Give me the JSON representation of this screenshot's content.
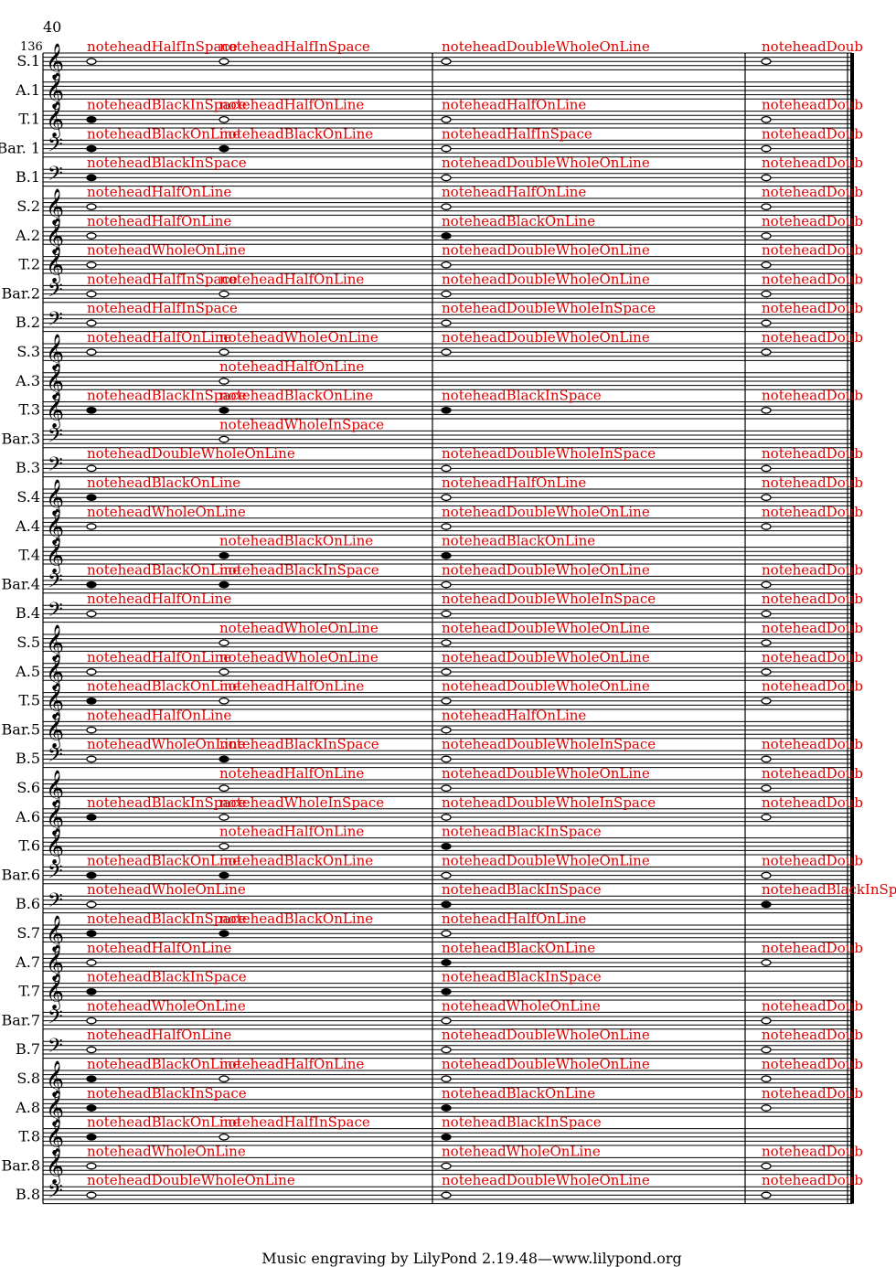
{
  "page": {
    "page_number": "40",
    "measure_number": "136",
    "footer": "Music engraving by LilyPond 2.19.48—www.lilypond.org"
  },
  "annotation_labels": {
    "whole_on_line": "noteheadWholeOnLine",
    "whole_in_space": "noteheadWholeInSpace",
    "double_whole_on_line": "noteheadDoubleWholeOnLine",
    "double_whole_in_space": "noteheadDoubleWholeInSpace",
    "half_on_line": "noteheadHalfOnLine",
    "half_in_space": "noteheadHalfInSpace",
    "black_on_line": "noteheadBlackOnLine",
    "black_in_space": "noteheadBlackInSpace",
    "truncated": "noteheadDoub"
  },
  "staves": [
    {
      "label": "S.1",
      "clef": "treble"
    },
    {
      "label": "A.1",
      "clef": "treble"
    },
    {
      "label": "T.1",
      "clef": "treble"
    },
    {
      "label": "Bar. 1",
      "clef": "bass"
    },
    {
      "label": "B.1",
      "clef": "bass"
    },
    {
      "label": "S.2",
      "clef": "treble"
    },
    {
      "label": "A.2",
      "clef": "treble"
    },
    {
      "label": "T.2",
      "clef": "treble"
    },
    {
      "label": "Bar.2",
      "clef": "bass"
    },
    {
      "label": "B.2",
      "clef": "bass"
    },
    {
      "label": "S.3",
      "clef": "treble"
    },
    {
      "label": "A.3",
      "clef": "treble"
    },
    {
      "label": "T.3",
      "clef": "treble"
    },
    {
      "label": "Bar.3",
      "clef": "bass"
    },
    {
      "label": "B.3",
      "clef": "bass"
    },
    {
      "label": "S.4",
      "clef": "treble"
    },
    {
      "label": "A.4",
      "clef": "treble"
    },
    {
      "label": "T.4",
      "clef": "treble"
    },
    {
      "label": "Bar.4",
      "clef": "bass"
    },
    {
      "label": "B.4",
      "clef": "bass"
    },
    {
      "label": "S.5",
      "clef": "treble"
    },
    {
      "label": "A.5",
      "clef": "treble"
    },
    {
      "label": "T.5",
      "clef": "treble"
    },
    {
      "label": "Bar.5",
      "clef": "treble"
    },
    {
      "label": "B.5",
      "clef": "bass"
    },
    {
      "label": "S.6",
      "clef": "treble"
    },
    {
      "label": "A.6",
      "clef": "treble"
    },
    {
      "label": "T.6",
      "clef": "treble"
    },
    {
      "label": "Bar.6",
      "clef": "bass"
    },
    {
      "label": "B.6",
      "clef": "bass"
    },
    {
      "label": "S.7",
      "clef": "treble"
    },
    {
      "label": "A.7",
      "clef": "treble"
    },
    {
      "label": "T.7",
      "clef": "treble"
    },
    {
      "label": "Bar.7",
      "clef": "bass"
    },
    {
      "label": "B.7",
      "clef": "bass"
    },
    {
      "label": "S.8",
      "clef": "treble"
    },
    {
      "label": "A.8",
      "clef": "treble"
    },
    {
      "label": "T.8",
      "clef": "treble"
    },
    {
      "label": "Bar.8",
      "clef": "treble"
    },
    {
      "label": "B.8",
      "clef": "bass"
    }
  ],
  "annotations": [
    {
      "staff": 0,
      "m": 0,
      "text": "noteheadHalfInSpace"
    },
    {
      "staff": 0,
      "m": 1,
      "text": "noteheadHalfInSpace"
    },
    {
      "staff": 0,
      "m": 2,
      "text": "noteheadDoubleWholeOnLine"
    },
    {
      "staff": 0,
      "m": 3,
      "text": "noteheadDoub"
    },
    {
      "staff": 2,
      "m": 0,
      "text": "noteheadBlackInSpace"
    },
    {
      "staff": 2,
      "m": 1,
      "text": "noteheadHalfOnLine"
    },
    {
      "staff": 2,
      "m": 2,
      "text": "noteheadHalfOnLine"
    },
    {
      "staff": 2,
      "m": 3,
      "text": "noteheadDoub"
    },
    {
      "staff": 3,
      "m": 0,
      "text": "noteheadBlackOnLine"
    },
    {
      "staff": 3,
      "m": 1,
      "text": "noteheadBlackOnLine"
    },
    {
      "staff": 3,
      "m": 2,
      "text": "noteheadHalfInSpace"
    },
    {
      "staff": 3,
      "m": 3,
      "text": "noteheadDoub"
    },
    {
      "staff": 4,
      "m": 0,
      "text": "noteheadBlackInSpace"
    },
    {
      "staff": 4,
      "m": 2,
      "text": "noteheadDoubleWholeOnLine"
    },
    {
      "staff": 4,
      "m": 3,
      "text": "noteheadDoub"
    },
    {
      "staff": 5,
      "m": 0,
      "text": "noteheadHalfOnLine"
    },
    {
      "staff": 5,
      "m": 2,
      "text": "noteheadHalfOnLine"
    },
    {
      "staff": 5,
      "m": 3,
      "text": "noteheadDoub"
    },
    {
      "staff": 6,
      "m": 0,
      "text": "noteheadHalfOnLine"
    },
    {
      "staff": 6,
      "m": 2,
      "text": "noteheadBlackOnLine"
    },
    {
      "staff": 6,
      "m": 3,
      "text": "noteheadDoub"
    },
    {
      "staff": 7,
      "m": 0,
      "text": "noteheadWholeOnLine"
    },
    {
      "staff": 7,
      "m": 2,
      "text": "noteheadDoubleWholeOnLine"
    },
    {
      "staff": 7,
      "m": 3,
      "text": "noteheadDoub"
    },
    {
      "staff": 8,
      "m": 0,
      "text": "noteheadHalfInSpace"
    },
    {
      "staff": 8,
      "m": 1,
      "text": "noteheadHalfOnLine"
    },
    {
      "staff": 8,
      "m": 2,
      "text": "noteheadDoubleWholeOnLine"
    },
    {
      "staff": 8,
      "m": 3,
      "text": "noteheadDoub"
    },
    {
      "staff": 9,
      "m": 0,
      "text": "noteheadHalfInSpace"
    },
    {
      "staff": 9,
      "m": 2,
      "text": "noteheadDoubleWholeInSpace"
    },
    {
      "staff": 9,
      "m": 3,
      "text": "noteheadDoub"
    },
    {
      "staff": 10,
      "m": 0,
      "text": "noteheadHalfOnLine"
    },
    {
      "staff": 10,
      "m": 1,
      "text": "noteheadWholeOnLine"
    },
    {
      "staff": 10,
      "m": 2,
      "text": "noteheadDoubleWholeOnLine"
    },
    {
      "staff": 10,
      "m": 3,
      "text": "noteheadDoub"
    },
    {
      "staff": 11,
      "m": 1,
      "text": "noteheadHalfOnLine"
    },
    {
      "staff": 12,
      "m": 0,
      "text": "noteheadBlackInSpace"
    },
    {
      "staff": 12,
      "m": 1,
      "text": "noteheadBlackOnLine"
    },
    {
      "staff": 12,
      "m": 2,
      "text": "noteheadBlackInSpace"
    },
    {
      "staff": 12,
      "m": 3,
      "text": "noteheadDoub"
    },
    {
      "staff": 13,
      "m": 1,
      "text": "noteheadWholeInSpace"
    },
    {
      "staff": 14,
      "m": 0,
      "text": "noteheadDoubleWholeOnLine"
    },
    {
      "staff": 14,
      "m": 2,
      "text": "noteheadDoubleWholeInSpace"
    },
    {
      "staff": 14,
      "m": 3,
      "text": "noteheadDoub"
    },
    {
      "staff": 15,
      "m": 0,
      "text": "noteheadBlackOnLine"
    },
    {
      "staff": 15,
      "m": 2,
      "text": "noteheadHalfOnLine"
    },
    {
      "staff": 15,
      "m": 3,
      "text": "noteheadDoub"
    },
    {
      "staff": 16,
      "m": 0,
      "text": "noteheadWholeOnLine"
    },
    {
      "staff": 16,
      "m": 2,
      "text": "noteheadDoubleWholeOnLine"
    },
    {
      "staff": 16,
      "m": 3,
      "text": "noteheadDoub"
    },
    {
      "staff": 17,
      "m": 1,
      "text": "noteheadBlackOnLine"
    },
    {
      "staff": 17,
      "m": 2,
      "text": "noteheadBlackOnLine"
    },
    {
      "staff": 18,
      "m": 0,
      "text": "noteheadBlackOnLine"
    },
    {
      "staff": 18,
      "m": 1,
      "text": "noteheadBlackInSpace"
    },
    {
      "staff": 18,
      "m": 2,
      "text": "noteheadDoubleWholeOnLine"
    },
    {
      "staff": 18,
      "m": 3,
      "text": "noteheadDoub"
    },
    {
      "staff": 19,
      "m": 0,
      "text": "noteheadHalfOnLine"
    },
    {
      "staff": 19,
      "m": 2,
      "text": "noteheadDoubleWholeInSpace"
    },
    {
      "staff": 19,
      "m": 3,
      "text": "noteheadDoub"
    },
    {
      "staff": 20,
      "m": 1,
      "text": "noteheadWholeOnLine"
    },
    {
      "staff": 20,
      "m": 2,
      "text": "noteheadDoubleWholeOnLine"
    },
    {
      "staff": 20,
      "m": 3,
      "text": "noteheadDoub"
    },
    {
      "staff": 21,
      "m": 0,
      "text": "noteheadHalfOnLine"
    },
    {
      "staff": 21,
      "m": 1,
      "text": "noteheadWholeOnLine"
    },
    {
      "staff": 21,
      "m": 2,
      "text": "noteheadDoubleWholeOnLine"
    },
    {
      "staff": 21,
      "m": 3,
      "text": "noteheadDoub"
    },
    {
      "staff": 22,
      "m": 0,
      "text": "noteheadBlackOnLine"
    },
    {
      "staff": 22,
      "m": 1,
      "text": "noteheadHalfOnLine"
    },
    {
      "staff": 22,
      "m": 2,
      "text": "noteheadDoubleWholeOnLine"
    },
    {
      "staff": 22,
      "m": 3,
      "text": "noteheadDoub"
    },
    {
      "staff": 23,
      "m": 0,
      "text": "noteheadHalfOnLine"
    },
    {
      "staff": 23,
      "m": 2,
      "text": "noteheadHalfOnLine"
    },
    {
      "staff": 24,
      "m": 0,
      "text": "noteheadWholeOnLine"
    },
    {
      "staff": 24,
      "m": 1,
      "text": "noteheadBlackInSpace"
    },
    {
      "staff": 24,
      "m": 2,
      "text": "noteheadDoubleWholeInSpace"
    },
    {
      "staff": 24,
      "m": 3,
      "text": "noteheadDoub"
    },
    {
      "staff": 25,
      "m": 1,
      "text": "noteheadHalfOnLine"
    },
    {
      "staff": 25,
      "m": 2,
      "text": "noteheadDoubleWholeOnLine"
    },
    {
      "staff": 25,
      "m": 3,
      "text": "noteheadDoub"
    },
    {
      "staff": 26,
      "m": 0,
      "text": "noteheadBlackInSpace"
    },
    {
      "staff": 26,
      "m": 1,
      "text": "noteheadWholeInSpace"
    },
    {
      "staff": 26,
      "m": 2,
      "text": "noteheadDoubleWholeInSpace"
    },
    {
      "staff": 26,
      "m": 3,
      "text": "noteheadDoub"
    },
    {
      "staff": 27,
      "m": 1,
      "text": "noteheadHalfOnLine"
    },
    {
      "staff": 27,
      "m": 2,
      "text": "noteheadBlackInSpace"
    },
    {
      "staff": 28,
      "m": 0,
      "text": "noteheadBlackOnLine"
    },
    {
      "staff": 28,
      "m": 1,
      "text": "noteheadBlackOnLine"
    },
    {
      "staff": 28,
      "m": 2,
      "text": "noteheadDoubleWholeOnLine"
    },
    {
      "staff": 28,
      "m": 3,
      "text": "noteheadDoub"
    },
    {
      "staff": 29,
      "m": 0,
      "text": "noteheadWholeOnLine"
    },
    {
      "staff": 29,
      "m": 2,
      "text": "noteheadBlackInSpace"
    },
    {
      "staff": 29,
      "m": 3,
      "text": "noteheadBlackInSpace"
    },
    {
      "staff": 30,
      "m": 0,
      "text": "noteheadBlackInSpace"
    },
    {
      "staff": 30,
      "m": 1,
      "text": "noteheadBlackOnLine"
    },
    {
      "staff": 30,
      "m": 2,
      "text": "noteheadHalfOnLine"
    },
    {
      "staff": 31,
      "m": 0,
      "text": "noteheadHalfOnLine"
    },
    {
      "staff": 31,
      "m": 2,
      "text": "noteheadBlackOnLine"
    },
    {
      "staff": 31,
      "m": 3,
      "text": "noteheadDoub"
    },
    {
      "staff": 32,
      "m": 0,
      "text": "noteheadBlackInSpace"
    },
    {
      "staff": 32,
      "m": 2,
      "text": "noteheadBlackInSpace"
    },
    {
      "staff": 33,
      "m": 0,
      "text": "noteheadWholeOnLine"
    },
    {
      "staff": 33,
      "m": 2,
      "text": "noteheadWholeOnLine"
    },
    {
      "staff": 33,
      "m": 3,
      "text": "noteheadDoub"
    },
    {
      "staff": 34,
      "m": 0,
      "text": "noteheadHalfOnLine"
    },
    {
      "staff": 34,
      "m": 2,
      "text": "noteheadDoubleWholeOnLine"
    },
    {
      "staff": 34,
      "m": 3,
      "text": "noteheadDoub"
    },
    {
      "staff": 35,
      "m": 0,
      "text": "noteheadBlackOnLine"
    },
    {
      "staff": 35,
      "m": 1,
      "text": "noteheadHalfOnLine"
    },
    {
      "staff": 35,
      "m": 2,
      "text": "noteheadDoubleWholeOnLine"
    },
    {
      "staff": 35,
      "m": 3,
      "text": "noteheadDoub"
    },
    {
      "staff": 36,
      "m": 0,
      "text": "noteheadBlackInSpace"
    },
    {
      "staff": 36,
      "m": 2,
      "text": "noteheadBlackOnLine"
    },
    {
      "staff": 36,
      "m": 3,
      "text": "noteheadDoub"
    },
    {
      "staff": 37,
      "m": 0,
      "text": "noteheadBlackOnLine"
    },
    {
      "staff": 37,
      "m": 1,
      "text": "noteheadHalfInSpace"
    },
    {
      "staff": 37,
      "m": 2,
      "text": "noteheadBlackInSpace"
    },
    {
      "staff": 38,
      "m": 0,
      "text": "noteheadWholeOnLine"
    },
    {
      "staff": 38,
      "m": 2,
      "text": "noteheadWholeOnLine"
    },
    {
      "staff": 38,
      "m": 3,
      "text": "noteheadDoub"
    },
    {
      "staff": 39,
      "m": 0,
      "text": "noteheadDoubleWholeOnLine"
    },
    {
      "staff": 39,
      "m": 2,
      "text": "noteheadDoubleWholeOnLine"
    },
    {
      "staff": 39,
      "m": 3,
      "text": "noteheadDoub"
    }
  ]
}
